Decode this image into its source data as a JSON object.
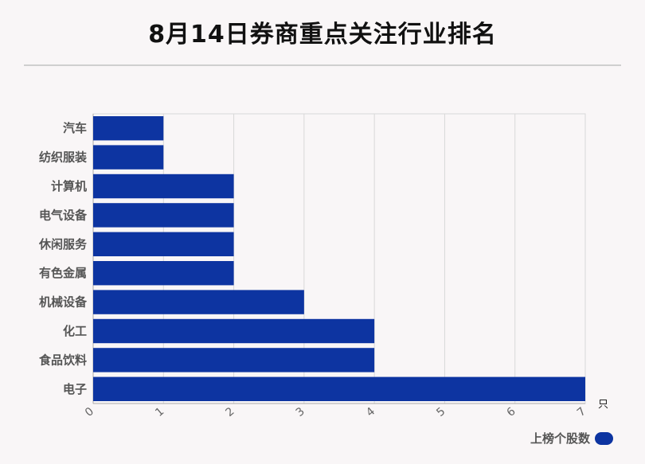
{
  "title": "8月14日券商重点关注行业排名",
  "chart_data": {
    "type": "bar",
    "orientation": "horizontal",
    "title": "8月14日券商重点关注行业排名",
    "categories": [
      "汽车",
      "纺织服装",
      "计算机",
      "电气设备",
      "休闲服务",
      "有色金属",
      "机械设备",
      "化工",
      "食品饮料",
      "电子"
    ],
    "series": [
      {
        "name": "上榜个股数",
        "values": [
          1,
          1,
          2,
          2,
          2,
          2,
          3,
          4,
          4,
          7
        ]
      }
    ],
    "xlim": [
      0,
      7
    ],
    "xticks": [
      "0",
      "1",
      "2",
      "3",
      "4",
      "5",
      "6",
      "7"
    ],
    "xunit": "只",
    "grid": true,
    "legend_position": "bottom-right",
    "bar_color": "#0d34a1"
  }
}
